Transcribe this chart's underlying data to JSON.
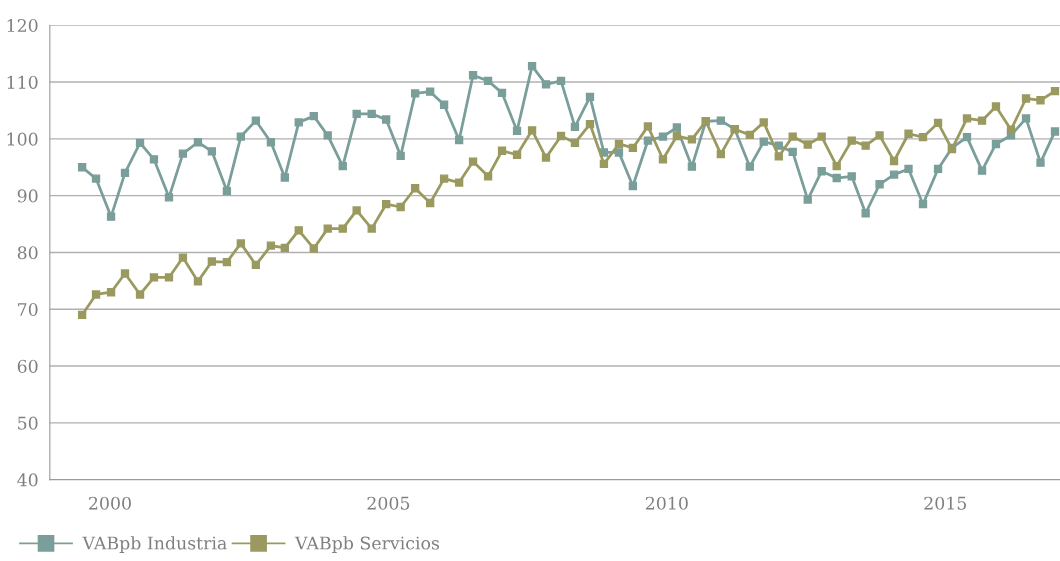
{
  "chart_data": {
    "type": "line",
    "x": [
      1999.5,
      1999.75,
      2000.02,
      2000.27,
      2000.54,
      2000.79,
      2001.06,
      2001.31,
      2001.58,
      2001.83,
      2002.1,
      2002.35,
      2002.62,
      2002.89,
      2003.14,
      2003.39,
      2003.66,
      2003.91,
      2004.18,
      2004.43,
      2004.7,
      2004.96,
      2005.22,
      2005.48,
      2005.75,
      2006.0,
      2006.27,
      2006.52,
      2006.79,
      2007.04,
      2007.31,
      2007.58,
      2007.83,
      2008.1,
      2008.35,
      2008.62,
      2008.87,
      2009.14,
      2009.39,
      2009.66,
      2009.93,
      2010.18,
      2010.45,
      2010.7,
      2010.97,
      2011.22,
      2011.49,
      2011.74,
      2012.01,
      2012.26,
      2012.53,
      2012.78,
      2013.05,
      2013.32,
      2013.57,
      2013.82,
      2014.08,
      2014.34,
      2014.6,
      2014.87,
      2015.12,
      2015.39,
      2015.66,
      2015.91,
      2016.18,
      2016.45,
      2016.71,
      2016.97
    ],
    "series": [
      {
        "name": "VABpb Industria",
        "color": "#7a9e9a",
        "values": [
          95,
          93,
          86.3,
          94,
          99.3,
          96.4,
          89.7,
          97.4,
          99.4,
          97.8,
          90.8,
          100.4,
          103.2,
          99.4,
          93.2,
          102.9,
          104,
          100.6,
          95.2,
          104.4,
          104.4,
          103.4,
          97,
          108,
          108.3,
          106,
          99.8,
          111.2,
          110.2,
          108.1,
          101.4,
          112.8,
          109.6,
          110.2,
          102.1,
          107.4,
          97.6,
          97.6,
          91.7,
          99.7,
          100.4,
          102,
          95.1,
          103.1,
          103.2,
          101.7,
          95.1,
          99.5,
          98.8,
          97.7,
          89.3,
          94.3,
          93.1,
          93.4,
          86.9,
          92,
          93.7,
          94.7,
          88.5,
          94.7,
          98.4,
          100.3,
          94.4,
          99.1,
          100.6,
          103.6,
          95.8,
          101.3
        ]
      },
      {
        "name": "VABpb Servicios",
        "color": "#9a9a60",
        "values": [
          69,
          72.6,
          73,
          76.3,
          72.6,
          75.6,
          75.6,
          79.1,
          74.9,
          78.4,
          78.3,
          81.6,
          77.8,
          81.2,
          80.8,
          83.9,
          80.7,
          84.2,
          84.2,
          87.4,
          84.2,
          88.5,
          88,
          91.3,
          88.7,
          93,
          92.3,
          96,
          93.4,
          97.9,
          97.2,
          101.5,
          96.7,
          100.5,
          99.3,
          102.6,
          95.6,
          99.1,
          98.4,
          102.2,
          96.4,
          100.5,
          99.9,
          103.1,
          97.3,
          101.7,
          100.7,
          102.9,
          96.9,
          100.4,
          99,
          100.4,
          95.2,
          99.7,
          98.8,
          100.6,
          96.1,
          100.9,
          100.3,
          102.8,
          98.2,
          103.6,
          103.2,
          105.7,
          101.6,
          107.1,
          106.8,
          108.4
        ]
      }
    ],
    "xlim": [
      1998.92,
      2017.06
    ],
    "xticks": [
      2000,
      2005,
      2010,
      2015
    ],
    "ylim": [
      40,
      120
    ],
    "yticks": [
      40,
      50,
      60,
      70,
      80,
      90,
      100,
      110,
      120
    ],
    "grid": "y",
    "legend": "bottom left",
    "marker": "square",
    "line_style": "solid"
  }
}
